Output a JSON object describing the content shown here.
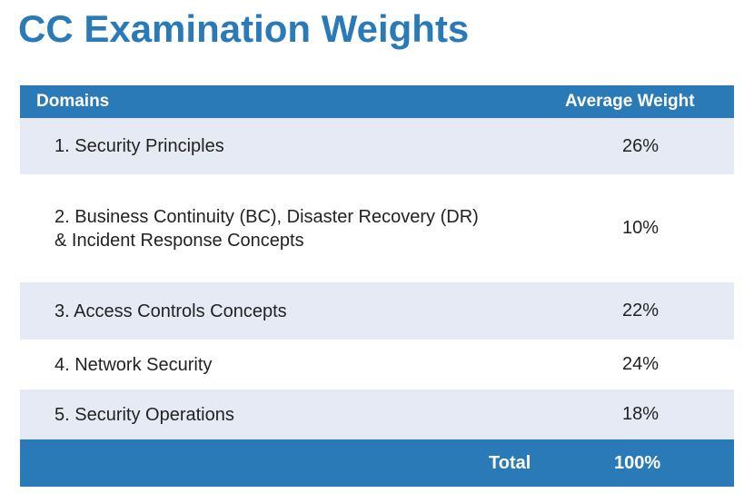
{
  "title": "CC Examination Weights",
  "table": {
    "headers": {
      "domains": "Domains",
      "weight": "Average Weight"
    },
    "rows": [
      {
        "domain_line1": "1. Security Principles",
        "domain_line2": "",
        "weight": "26%"
      },
      {
        "domain_line1": "2. Business Continuity (BC), Disaster Recovery (DR)",
        "domain_line2": "& Incident Response Concepts",
        "weight": "10%"
      },
      {
        "domain_line1": "3. Access Controls Concepts",
        "domain_line2": "",
        "weight": "22%"
      },
      {
        "domain_line1": "4. Network Security",
        "domain_line2": "",
        "weight": "24%"
      },
      {
        "domain_line1": "5. Security Operations",
        "domain_line2": "",
        "weight": "18%"
      }
    ],
    "total": {
      "label": "Total",
      "value": "100%"
    }
  },
  "colors": {
    "accent": "#2a7ab8",
    "row_shade": "#e6eaf4"
  }
}
